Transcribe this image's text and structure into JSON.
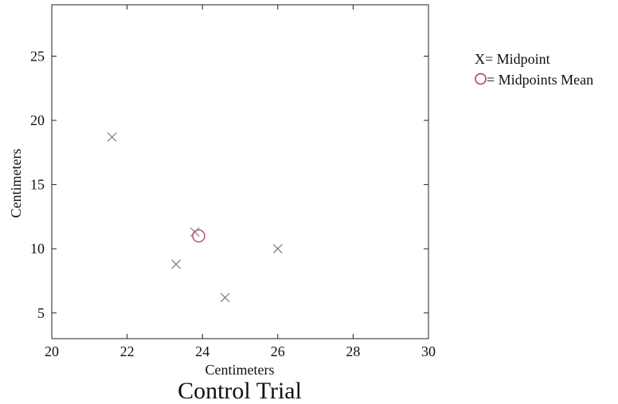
{
  "chart_data": {
    "type": "scatter",
    "title": "Control Trial",
    "xlabel": "Centimeters",
    "ylabel": "Centimeters",
    "xlim": [
      20,
      30
    ],
    "ylim": [
      3,
      29
    ],
    "xticks": [
      20,
      22,
      24,
      26,
      28,
      30
    ],
    "yticks": [
      5,
      10,
      15,
      20,
      25
    ],
    "grid": false,
    "legend_position": "right",
    "series": [
      {
        "name": "Midpoint",
        "legend_label": "X= Midpoint",
        "marker": "x",
        "color": "#7a7a7a",
        "points": [
          {
            "x": 21.6,
            "y": 18.7
          },
          {
            "x": 23.3,
            "y": 8.8
          },
          {
            "x": 23.8,
            "y": 11.3
          },
          {
            "x": 24.6,
            "y": 6.2
          },
          {
            "x": 26.0,
            "y": 10.0
          }
        ]
      },
      {
        "name": "Midpoints Mean",
        "legend_label": "= Midpoints Mean",
        "marker": "circle",
        "color": "#c0506e",
        "points": [
          {
            "x": 23.9,
            "y": 11.0
          }
        ]
      }
    ]
  }
}
